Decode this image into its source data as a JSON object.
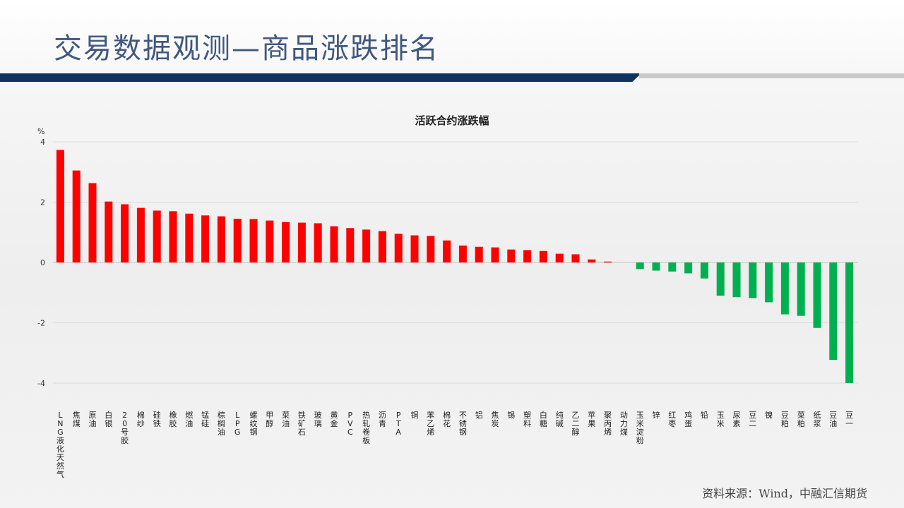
{
  "page": {
    "title": "交易数据观测—商品涨跌排名",
    "source": "资料来源：Wind，中融汇信期货"
  },
  "colors": {
    "title": "#41587f",
    "navy_stripe": "#12335d",
    "positive_bar": "#ff0000",
    "negative_bar": "#00b050"
  },
  "chart_data": {
    "type": "bar",
    "title": "活跃合约涨跌幅",
    "ylabel": "%",
    "ylim": [
      -4,
      4
    ],
    "yticks": [
      4,
      2,
      0,
      -2,
      -4
    ],
    "grid": true,
    "categories": [
      "LNG液化天然气",
      "焦煤",
      "原油",
      "白银",
      "20号胶",
      "棉纱",
      "硅铁",
      "橡胶",
      "燃油",
      "锰硅",
      "棕榈油",
      "LPG",
      "螺纹钢",
      "甲醇",
      "菜油",
      "铁矿石",
      "玻璃",
      "黄金",
      "PVC",
      "热轧卷板",
      "沥青",
      "PTA",
      "铜",
      "苯乙烯",
      "棉花",
      "不锈钢",
      "铝",
      "焦炭",
      "锡",
      "塑料",
      "白糖",
      "纯碱",
      "乙二醇",
      "苹果",
      "聚丙烯",
      "动力煤",
      "玉米淀粉",
      "锌",
      "红枣",
      "鸡蛋",
      "铅",
      "玉米",
      "尿素",
      "豆二",
      "镍",
      "豆粕",
      "菜粕",
      "纸浆",
      "豆油",
      "豆一"
    ],
    "values": [
      3.73,
      3.05,
      2.63,
      2.02,
      1.93,
      1.81,
      1.72,
      1.7,
      1.62,
      1.56,
      1.53,
      1.45,
      1.44,
      1.39,
      1.34,
      1.32,
      1.3,
      1.2,
      1.14,
      1.09,
      1.04,
      0.95,
      0.9,
      0.88,
      0.73,
      0.56,
      0.52,
      0.5,
      0.43,
      0.41,
      0.38,
      0.29,
      0.27,
      0.1,
      0.03,
      0.0,
      -0.22,
      -0.27,
      -0.3,
      -0.36,
      -0.53,
      -1.1,
      -1.15,
      -1.18,
      -1.32,
      -1.72,
      -1.77,
      -2.17,
      -3.23,
      -4.0
    ]
  }
}
